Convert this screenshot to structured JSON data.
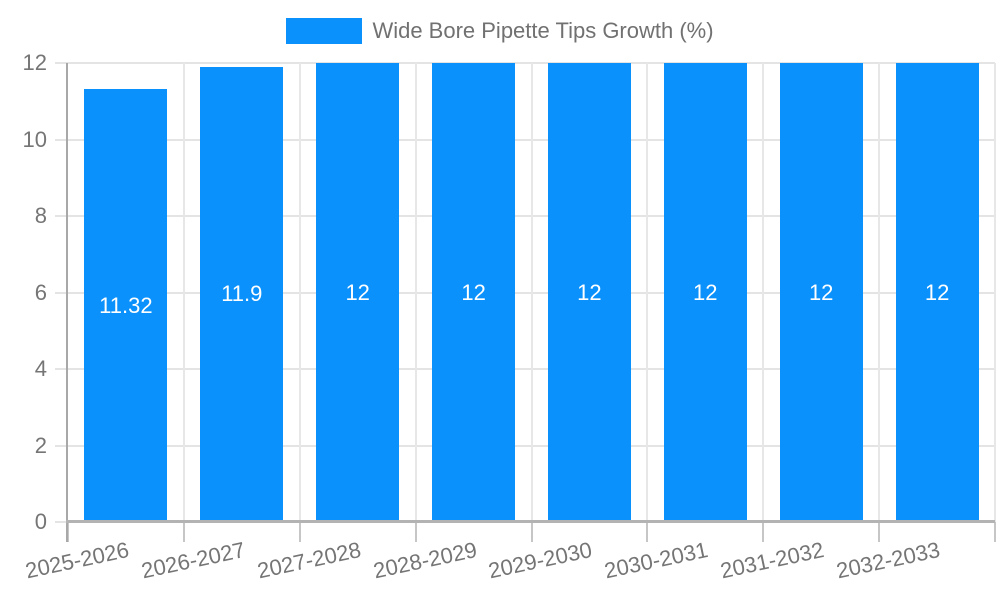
{
  "legend": {
    "label": "Wide Bore Pipette Tips Growth (%)"
  },
  "colors": {
    "bar": "#0A91FB",
    "axis_label_text": "#757575",
    "legend_text": "#717171",
    "bar_value_text": "#FFFFFF"
  },
  "chart_data": {
    "type": "bar",
    "categories": [
      "2025-2026",
      "2026-2027",
      "2027-2028",
      "2028-2029",
      "2029-2030",
      "2030-2031",
      "2031-2032",
      "2032-2033"
    ],
    "series": [
      {
        "name": "Wide Bore Pipette Tips Growth (%)",
        "color": "#0A91FB",
        "values": [
          11.32,
          11.9,
          12,
          12,
          12,
          12,
          12,
          12
        ]
      }
    ],
    "value_labels": [
      "11.32",
      "11.9",
      "12",
      "12",
      "12",
      "12",
      "12",
      "12"
    ],
    "title": "",
    "xlabel": "",
    "ylabel": "",
    "ylim": [
      0,
      12
    ],
    "yticks": [
      0,
      2,
      4,
      6,
      8,
      10,
      12
    ],
    "grid": true,
    "legend_position": "top"
  }
}
